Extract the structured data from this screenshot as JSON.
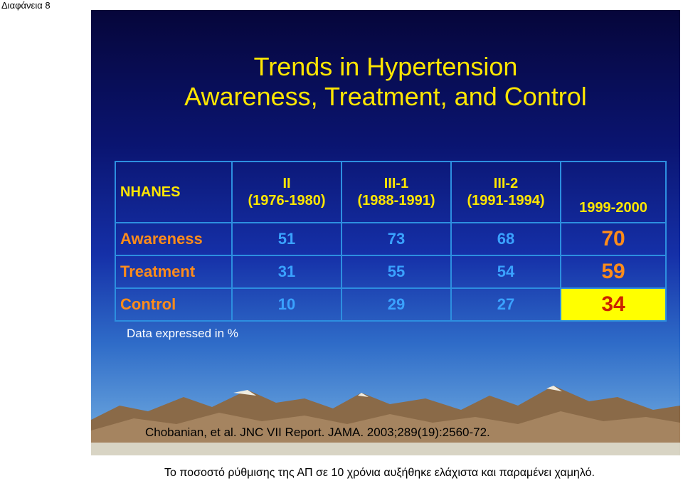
{
  "page_label": "Διαφάνεια 8",
  "slide": {
    "title_line1": "Trends in Hypertension",
    "title_line2": "Awareness, Treatment, and Control",
    "table": {
      "corner_label": "NHANES",
      "columns": [
        {
          "survey": "II",
          "period": "(1976-1980)"
        },
        {
          "survey": "III-1",
          "period": "(1988-1991)"
        },
        {
          "survey": "III-2",
          "period": "(1991-1994)"
        },
        {
          "survey": "",
          "period": "1999-2000"
        }
      ],
      "rows": [
        {
          "label": "Awareness",
          "values": [
            "51",
            "73",
            "68",
            "70"
          ]
        },
        {
          "label": "Treatment",
          "values": [
            "31",
            "55",
            "54",
            "59"
          ]
        },
        {
          "label": "Control",
          "values": [
            "10",
            "29",
            "27",
            "34"
          ]
        }
      ]
    },
    "note": "Data expressed in %",
    "citation": "Chobanian, et al. JNC VII Report. JAMA. 2003;289(19):2560-72."
  },
  "caption": "Το ποσοστό ρύθμισης της ΑΠ σε 10 χρόνια αυξήθηκε ελάχιστα και παραμένει χαμηλό.",
  "colors": {
    "title": "#ffe600",
    "row_labels": "#ff8c1a",
    "values": "#3aa2ff",
    "highlight_cell": "#ffff00",
    "grid": "#2d8fe0"
  }
}
